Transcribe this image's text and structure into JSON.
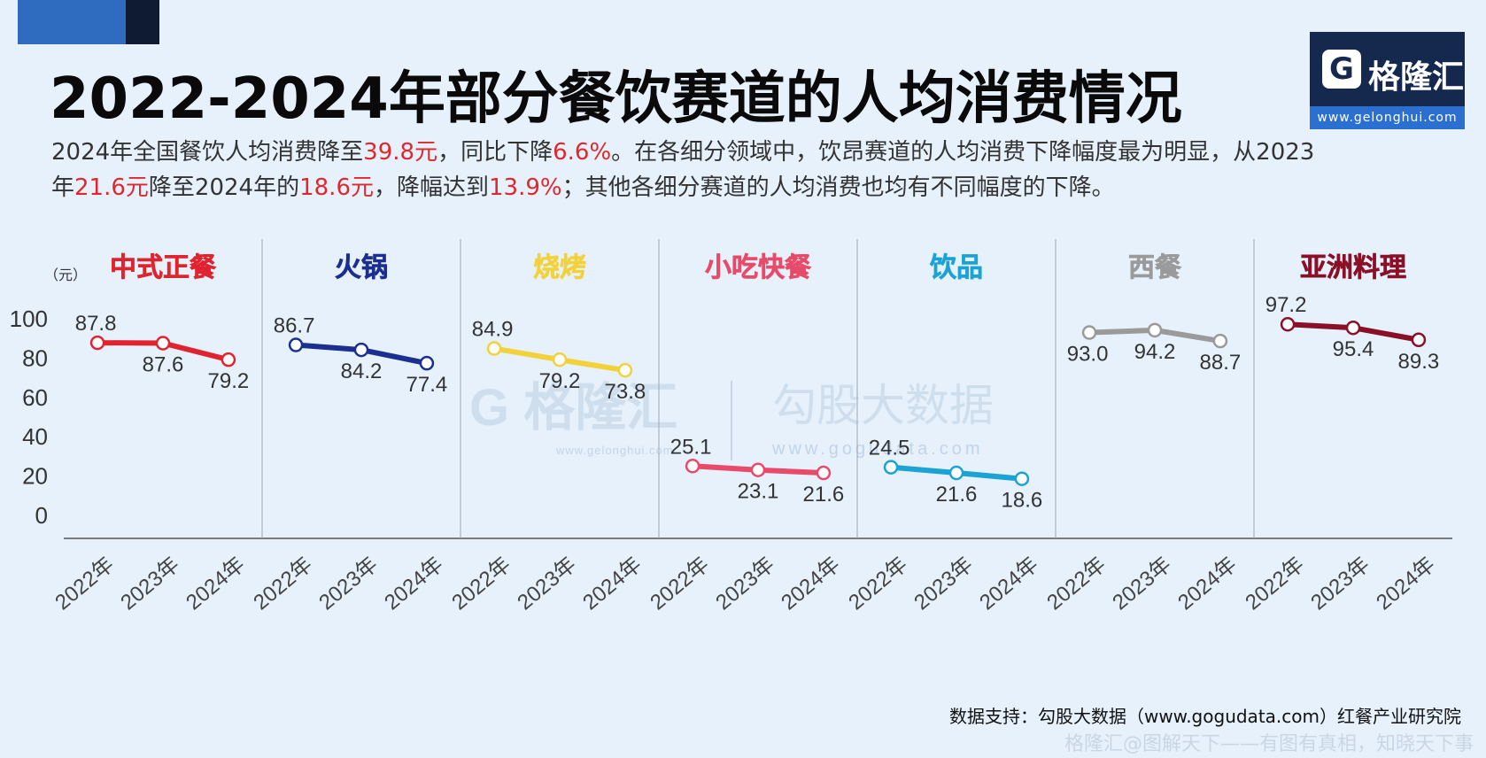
{
  "header": {
    "title": "2022-2024年部分餐饮赛道的人均消费情况",
    "logo_mark": "G",
    "logo_name": "格隆汇",
    "logo_url": "www.gelonghui.com"
  },
  "description": {
    "segments": [
      {
        "text": "2024年全国餐饮人均消费降至",
        "highlight": false
      },
      {
        "text": "39.8元",
        "highlight": true
      },
      {
        "text": "，同比下降",
        "highlight": false
      },
      {
        "text": "6.6%",
        "highlight": true
      },
      {
        "text": "。在各细分领域中，饮昂赛道的人均消费下降幅度最为明显，从2023年",
        "highlight": false
      },
      {
        "text": "21.6元",
        "highlight": true
      },
      {
        "text": "降至2024年的",
        "highlight": false
      },
      {
        "text": "18.6元",
        "highlight": true
      },
      {
        "text": "，降幅达到",
        "highlight": false
      },
      {
        "text": "13.9%",
        "highlight": true
      },
      {
        "text": "；其他各细分赛道的人均消费也均有不同幅度的下降。",
        "highlight": false
      }
    ],
    "highlight_color": "#e0272d"
  },
  "chart_data": {
    "type": "line",
    "y_unit": "（元）",
    "ylim": [
      0,
      100
    ],
    "yticks": [
      0,
      20,
      40,
      60,
      80,
      100
    ],
    "x": [
      "2022年",
      "2023年",
      "2024年"
    ],
    "grid": false,
    "watermark_texts": [
      "格隆汇",
      "www.gelonghui.com",
      "勾股大数据",
      "www.gogudata.com"
    ],
    "series": [
      {
        "name": "中式正餐",
        "color": "#e0242f",
        "values": [
          87.8,
          87.6,
          79.2
        ]
      },
      {
        "name": "火锅",
        "color": "#1a2f8f",
        "values": [
          86.7,
          84.2,
          77.4
        ]
      },
      {
        "name": "烧烤",
        "color": "#f2d23a",
        "values": [
          84.9,
          79.2,
          73.8
        ]
      },
      {
        "name": "小吃快餐",
        "color": "#e84a6a",
        "values": [
          25.1,
          23.1,
          21.6
        ]
      },
      {
        "name": "饮品",
        "color": "#1aa3d4",
        "values": [
          24.5,
          21.6,
          18.6
        ]
      },
      {
        "name": "西餐",
        "color": "#9a9a9a",
        "values": [
          93.0,
          94.2,
          88.7
        ]
      },
      {
        "name": "亚洲料理",
        "color": "#8a1028",
        "values": [
          97.2,
          95.4,
          89.3
        ]
      }
    ]
  },
  "footer": {
    "source": "数据支持：勾股大数据（www.gogudata.com）红餐产业研究院",
    "watermark": "格隆汇@图解天下——有图有真相，知晓天下事"
  }
}
